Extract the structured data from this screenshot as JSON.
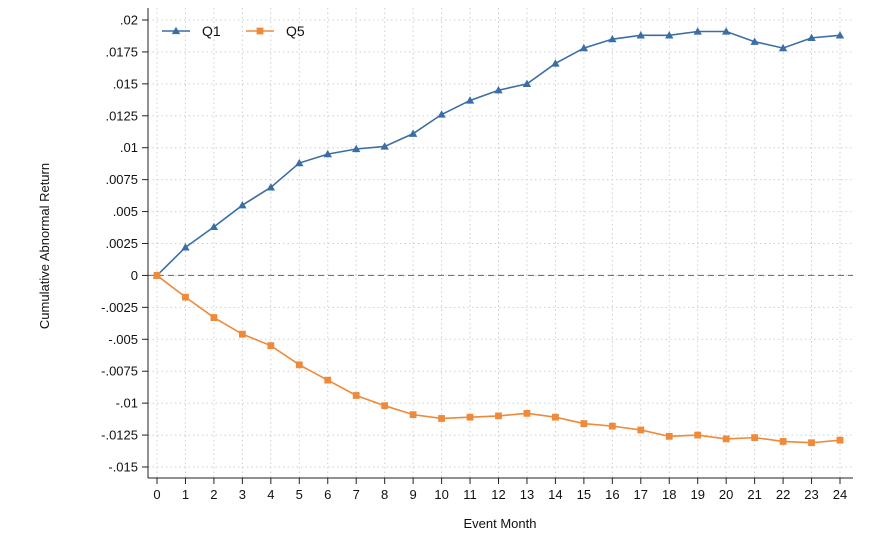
{
  "chart_data": {
    "type": "line",
    "xlabel": "Event Month",
    "ylabel": "Cumulative Abnormal Return",
    "xlim": [
      0,
      24
    ],
    "ylim": [
      -0.015,
      0.02
    ],
    "x": [
      0,
      1,
      2,
      3,
      4,
      5,
      6,
      7,
      8,
      9,
      10,
      11,
      12,
      13,
      14,
      15,
      16,
      17,
      18,
      19,
      20,
      21,
      22,
      23,
      24
    ],
    "x_tick_labels": [
      "0",
      "1",
      "2",
      "3",
      "4",
      "5",
      "6",
      "7",
      "8",
      "9",
      "10",
      "11",
      "12",
      "13",
      "14",
      "15",
      "16",
      "17",
      "18",
      "19",
      "20",
      "21",
      "22",
      "23",
      "24"
    ],
    "y_ticks": [
      0.02,
      0.0175,
      0.015,
      0.0125,
      0.01,
      0.0075,
      0.005,
      0.0025,
      0,
      -0.0025,
      -0.005,
      -0.0075,
      -0.01,
      -0.0125,
      -0.015
    ],
    "y_tick_labels": [
      ".02",
      ".0175",
      ".015",
      ".0125",
      ".01",
      ".0075",
      ".005",
      ".0025",
      "0",
      "-.0025",
      "-.005",
      "-.0075",
      "-.01",
      "-.0125",
      "-.015"
    ],
    "grid": true,
    "reference_line": {
      "y": 0,
      "style": "dashed"
    },
    "legend_position": "top-left",
    "series": [
      {
        "name": "Q1",
        "marker": "triangle",
        "color": "#3a6ea5",
        "values": [
          0,
          0.0022,
          0.0038,
          0.0055,
          0.0069,
          0.0088,
          0.0095,
          0.0099,
          0.0101,
          0.0111,
          0.0126,
          0.0137,
          0.0145,
          0.015,
          0.0166,
          0.0178,
          0.0185,
          0.0188,
          0.0188,
          0.0191,
          0.0191,
          0.0183,
          0.0178,
          0.0186,
          0.0188
        ]
      },
      {
        "name": "Q5",
        "marker": "square",
        "color": "#ee8a3a",
        "values": [
          0,
          -0.0017,
          -0.0033,
          -0.0046,
          -0.0055,
          -0.007,
          -0.0082,
          -0.0094,
          -0.0102,
          -0.0109,
          -0.0112,
          -0.0111,
          -0.011,
          -0.0108,
          -0.0111,
          -0.0116,
          -0.0118,
          -0.0121,
          -0.0126,
          -0.0125,
          -0.0128,
          -0.0127,
          -0.013,
          -0.0131,
          -0.0129
        ]
      }
    ]
  }
}
